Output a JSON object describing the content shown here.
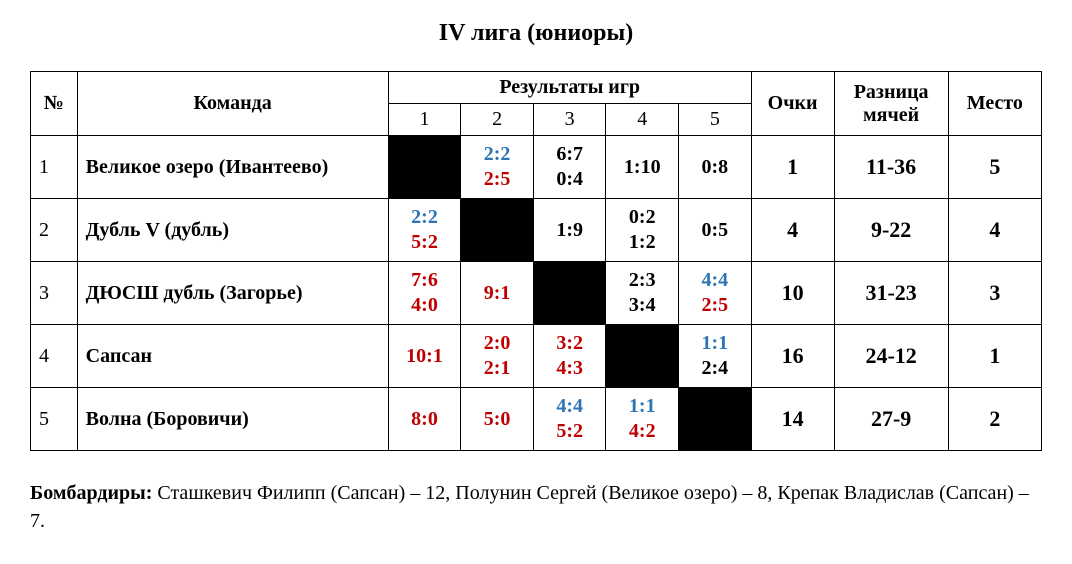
{
  "title": "IV лига (юниоры)",
  "headers": {
    "num": "№",
    "team": "Команда",
    "results": "Результаты игр",
    "points": "Очки",
    "diff": "Разница мячей",
    "place": "Место",
    "r1": "1",
    "r2": "2",
    "r3": "3",
    "r4": "4",
    "r5": "5"
  },
  "colors": {
    "black": "#000000",
    "red": "#c00000",
    "blue": "#2e75b6",
    "bg": "#ffffff",
    "diag": "#000000"
  },
  "rows": [
    {
      "num": "1",
      "team": "Великое озеро (Ивантеево)",
      "cells": [
        null,
        {
          "a": {
            "t": "2:2",
            "c": "blue"
          },
          "b": {
            "t": "2:5",
            "c": "red"
          }
        },
        {
          "a": {
            "t": "6:7",
            "c": "black"
          },
          "b": {
            "t": "0:4",
            "c": "black"
          }
        },
        {
          "a": {
            "t": "1:10",
            "c": "black"
          }
        },
        {
          "a": {
            "t": "0:8",
            "c": "black"
          }
        }
      ],
      "points": "1",
      "diff": "11-36",
      "place": "5"
    },
    {
      "num": "2",
      "team": "Дубль V (дубль)",
      "cells": [
        {
          "a": {
            "t": "2:2",
            "c": "blue"
          },
          "b": {
            "t": "5:2",
            "c": "red"
          }
        },
        null,
        {
          "a": {
            "t": "1:9",
            "c": "black"
          }
        },
        {
          "a": {
            "t": "0:2",
            "c": "black"
          },
          "b": {
            "t": "1:2",
            "c": "black"
          }
        },
        {
          "a": {
            "t": "0:5",
            "c": "black"
          }
        }
      ],
      "points": "4",
      "diff": "9-22",
      "place": "4"
    },
    {
      "num": "3",
      "team": "ДЮСШ дубль (Загорье)",
      "cells": [
        {
          "a": {
            "t": "7:6",
            "c": "red"
          },
          "b": {
            "t": "4:0",
            "c": "red"
          }
        },
        {
          "a": {
            "t": "9:1",
            "c": "red"
          }
        },
        null,
        {
          "a": {
            "t": "2:3",
            "c": "black"
          },
          "b": {
            "t": "3:4",
            "c": "black"
          }
        },
        {
          "a": {
            "t": "4:4",
            "c": "blue"
          },
          "b": {
            "t": "2:5",
            "c": "red"
          }
        }
      ],
      "points": "10",
      "diff": "31-23",
      "place": "3"
    },
    {
      "num": "4",
      "team": "Сапсан",
      "cells": [
        {
          "a": {
            "t": "10:1",
            "c": "red"
          }
        },
        {
          "a": {
            "t": "2:0",
            "c": "red"
          },
          "b": {
            "t": "2:1",
            "c": "red"
          }
        },
        {
          "a": {
            "t": "3:2",
            "c": "red"
          },
          "b": {
            "t": "4:3",
            "c": "red"
          }
        },
        null,
        {
          "a": {
            "t": "1:1",
            "c": "blue"
          },
          "b": {
            "t": "2:4",
            "c": "black"
          }
        }
      ],
      "points": "16",
      "diff": "24-12",
      "place": "1"
    },
    {
      "num": "5",
      "team": "Волна (Боровичи)",
      "cells": [
        {
          "a": {
            "t": "8:0",
            "c": "red"
          }
        },
        {
          "a": {
            "t": "5:0",
            "c": "red"
          }
        },
        {
          "a": {
            "t": "4:4",
            "c": "blue"
          },
          "b": {
            "t": "5:2",
            "c": "red"
          }
        },
        {
          "a": {
            "t": "1:1",
            "c": "blue"
          },
          "b": {
            "t": "4:2",
            "c": "red"
          }
        },
        null
      ],
      "points": "14",
      "diff": "27-9",
      "place": "2"
    }
  ],
  "footer": {
    "label": "Бомбардиры:",
    "text": " Сташкевич Филипп (Сапсан) – 12, Полунин Сергей (Великое озеро) – 8, Крепак Владислав (Сапсан) – 7."
  }
}
